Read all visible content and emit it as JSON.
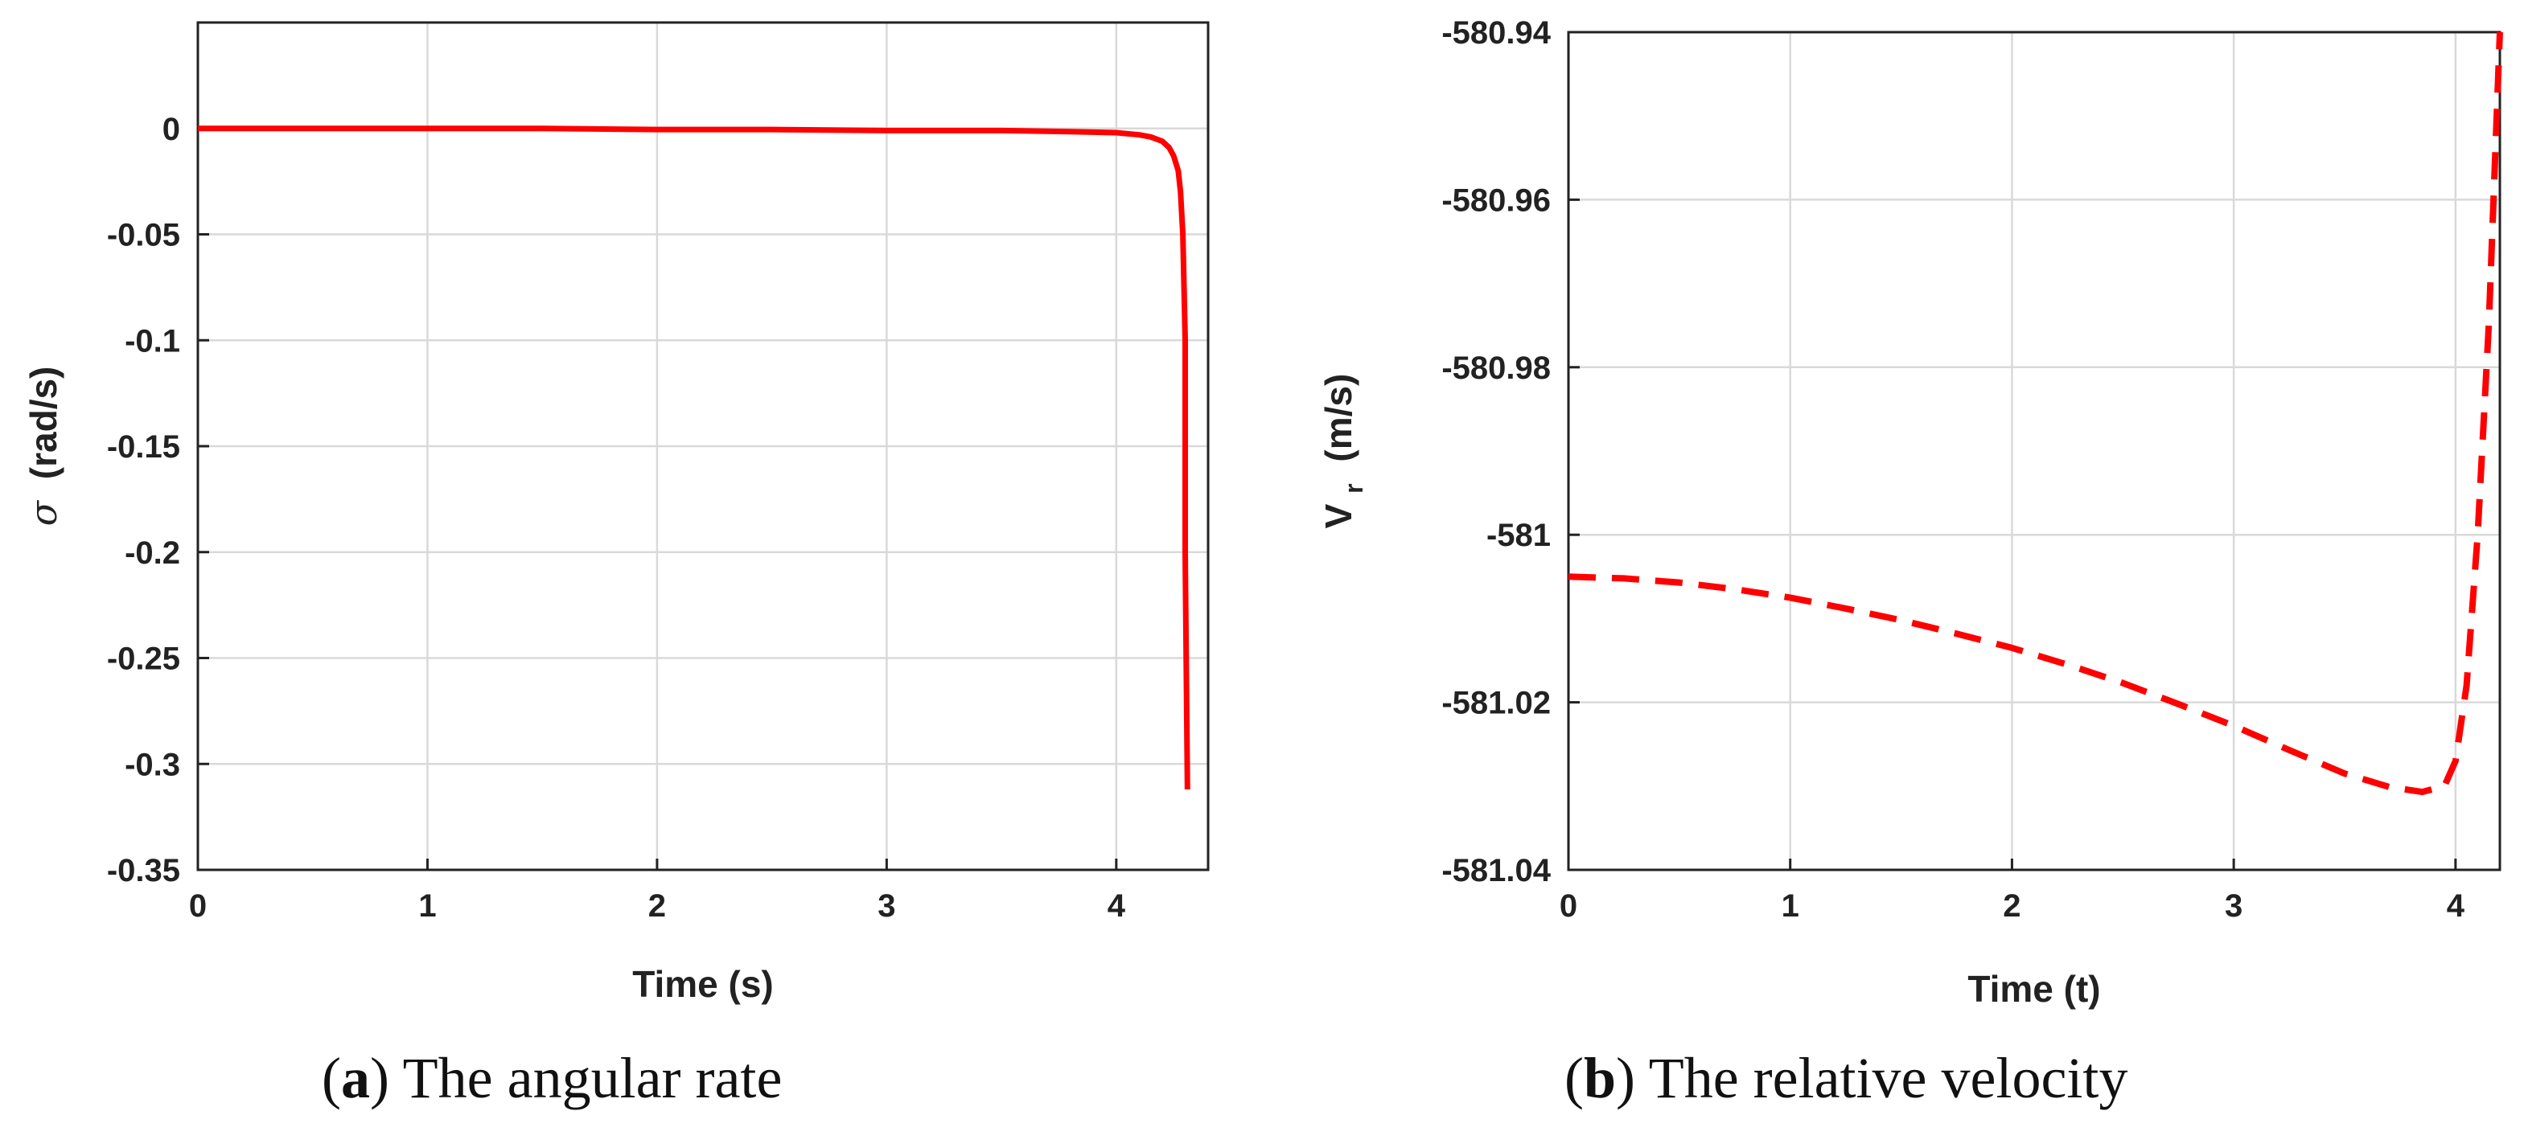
{
  "colors": {
    "series": "#ff0000",
    "grid": "#d9d9d9",
    "axes": "#222222"
  },
  "chart_data": [
    {
      "id": "a",
      "type": "line",
      "title": "",
      "xlabel": "Time (s)",
      "ylabel_symbol": "σ",
      "ylabel": "(rad/s)",
      "xlim": [
        0,
        4.4
      ],
      "ylim": [
        -0.35,
        0.05
      ],
      "xticks": [
        0,
        1,
        2,
        3,
        4
      ],
      "xtick_labels": [
        "0",
        "1",
        "2",
        "3",
        "4"
      ],
      "yticks": [
        0,
        -0.05,
        -0.1,
        -0.15,
        -0.2,
        -0.25,
        -0.3,
        -0.35
      ],
      "ytick_labels": [
        "0",
        "-0.05",
        "-0.1",
        "-0.15",
        "-0.2",
        "-0.25",
        "-0.3",
        "-0.35"
      ],
      "grid": true,
      "series": [
        {
          "name": "angular rate",
          "style": "solid",
          "color": "#ff0000",
          "x": [
            0,
            0.5,
            1,
            1.5,
            2,
            2.5,
            3,
            3.5,
            3.8,
            4.0,
            4.1,
            4.15,
            4.2,
            4.23,
            4.25,
            4.27,
            4.28,
            4.29,
            4.3,
            4.3,
            4.31
          ],
          "y": [
            0,
            0,
            0,
            0,
            -0.0005,
            -0.0005,
            -0.001,
            -0.001,
            -0.0015,
            -0.002,
            -0.003,
            -0.004,
            -0.006,
            -0.009,
            -0.013,
            -0.02,
            -0.03,
            -0.05,
            -0.1,
            -0.2,
            -0.312
          ]
        }
      ]
    },
    {
      "id": "b",
      "type": "line",
      "title": "",
      "xlabel": "Time (t)",
      "ylabel_main": "V",
      "ylabel_sub": "r",
      "ylabel_unit": "(m/s)",
      "xlim": [
        0,
        4.2
      ],
      "ylim": [
        -581.04,
        -580.94
      ],
      "xticks": [
        0,
        1,
        2,
        3,
        4
      ],
      "xtick_labels": [
        "0",
        "1",
        "2",
        "3",
        "4"
      ],
      "yticks": [
        -580.94,
        -580.96,
        -580.98,
        -581,
        -581.02,
        -581.04
      ],
      "ytick_labels": [
        "-580.94",
        "-580.96",
        "-580.98",
        "-581",
        "-581.02",
        "-581.04"
      ],
      "grid": true,
      "series": [
        {
          "name": "relative velocity",
          "style": "dashed",
          "color": "#ff0000",
          "x": [
            0,
            0.25,
            0.5,
            0.75,
            1,
            1.25,
            1.5,
            1.75,
            2,
            2.25,
            2.5,
            2.75,
            3,
            3.25,
            3.5,
            3.7,
            3.85,
            3.95,
            4.0,
            4.05,
            4.1,
            4.15,
            4.2
          ],
          "y": [
            -581.005,
            -581.0052,
            -581.0057,
            -581.0065,
            -581.0075,
            -581.0088,
            -581.0102,
            -581.0118,
            -581.0135,
            -581.0155,
            -581.0177,
            -581.0202,
            -581.0228,
            -581.0257,
            -581.0285,
            -581.0301,
            -581.0307,
            -581.03,
            -581.027,
            -581.018,
            -581.0,
            -580.975,
            -580.94
          ]
        }
      ]
    }
  ],
  "captions": [
    {
      "letter": "a",
      "text": " The angular rate"
    },
    {
      "letter": "b",
      "text": " The relative velocity"
    }
  ]
}
